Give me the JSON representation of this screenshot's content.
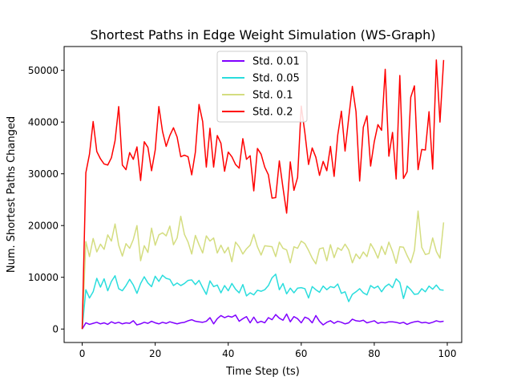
{
  "chart_data": {
    "type": "line",
    "title": "Shortest Paths in Edge Weight Simulation (WS-Graph)",
    "xlabel": "Time Step (ts)",
    "ylabel": "Num. Shortest Paths Changed",
    "xlim": [
      -4.95,
      103.95
    ],
    "ylim": [
      -2600,
      54600
    ],
    "xticks": [
      0,
      20,
      40,
      60,
      80,
      100
    ],
    "yticks": [
      0,
      10000,
      20000,
      30000,
      40000,
      50000
    ],
    "xtick_labels": [
      "0",
      "20",
      "40",
      "60",
      "80",
      "100"
    ],
    "ytick_labels": [
      "0",
      "10000",
      "20000",
      "30000",
      "40000",
      "50000"
    ],
    "grid": false,
    "legend_position": "top-center",
    "x_start": 0,
    "series": [
      {
        "name": "Std. 0.01",
        "color": "#8000ff",
        "values": [
          0,
          1200,
          900,
          1100,
          1300,
          1000,
          1200,
          900,
          1400,
          1100,
          1300,
          1000,
          1200,
          1100,
          1600,
          800,
          1000,
          1300,
          1100,
          1500,
          1200,
          1000,
          1300,
          1100,
          1400,
          1200,
          1000,
          1200,
          1300,
          1600,
          1800,
          1500,
          1400,
          1300,
          1500,
          2200,
          1000,
          2000,
          2600,
          2200,
          2500,
          2300,
          2700,
          1500,
          2000,
          2400,
          1200,
          2300,
          1200,
          1500,
          1200,
          2200,
          1800,
          2800,
          2100,
          1700,
          2900,
          1400,
          2400,
          2000,
          1200,
          2300,
          2000,
          1200,
          2600,
          1500,
          800,
          1300,
          1600,
          1100,
          1500,
          1300,
          1000,
          1200,
          1900,
          1600,
          1500,
          1700,
          1200,
          1400,
          1600,
          1100,
          1300,
          1200,
          1400,
          1400,
          1300,
          1100,
          1300,
          900,
          1200,
          1400,
          1500,
          1200,
          1300,
          1100,
          1300,
          1600,
          1400,
          1500
        ]
      },
      {
        "name": "Std. 0.05",
        "color": "#2adddd",
        "values": [
          0,
          7600,
          6000,
          7200,
          9800,
          8100,
          9700,
          7400,
          9200,
          10300,
          7800,
          7400,
          8400,
          9600,
          8500,
          6900,
          8800,
          10100,
          8900,
          8200,
          10200,
          9200,
          10400,
          9800,
          9600,
          8400,
          8900,
          8400,
          8800,
          9400,
          9500,
          8600,
          9400,
          8000,
          6700,
          9300,
          8200,
          8500,
          7000,
          8400,
          7400,
          8800,
          7700,
          7000,
          8600,
          6400,
          7000,
          6600,
          7500,
          7300,
          7600,
          8400,
          9900,
          10600,
          7600,
          8800,
          6800,
          7900,
          7000,
          7900,
          8000,
          7800,
          6000,
          8200,
          7600,
          7100,
          8300,
          7600,
          8200,
          8000,
          8700,
          6900,
          7200,
          5300,
          6700,
          7200,
          7800,
          7000,
          6600,
          8400,
          7900,
          8300,
          7200,
          8200,
          8700,
          8000,
          9700,
          9000,
          5900,
          8300,
          7600,
          6700,
          6800,
          7800,
          7200,
          8300,
          7700,
          8500,
          7600,
          7500
        ]
      },
      {
        "name": "Std. 0.1",
        "color": "#d4dd80",
        "values": [
          0,
          16900,
          14000,
          17500,
          14900,
          16400,
          15400,
          18200,
          17000,
          20300,
          16200,
          14100,
          16500,
          15600,
          17300,
          20000,
          13200,
          16100,
          14800,
          19500,
          16200,
          18200,
          18600,
          18000,
          19900,
          16300,
          17600,
          21800,
          18300,
          16800,
          14500,
          18100,
          16300,
          14700,
          18000,
          17000,
          17600,
          14700,
          16200,
          14700,
          15800,
          13000,
          16800,
          15900,
          14500,
          15500,
          16200,
          18300,
          15900,
          14300,
          16100,
          16000,
          15900,
          14000,
          16800,
          15600,
          15300,
          12800,
          15900,
          15600,
          17000,
          16500,
          15200,
          13700,
          12600,
          15500,
          15700,
          13200,
          16300,
          13800,
          15700,
          15200,
          16400,
          15300,
          12800,
          14500,
          13600,
          14900,
          14000,
          16500,
          15300,
          13700,
          16000,
          14400,
          16800,
          15000,
          12700,
          15900,
          15800,
          14200,
          12800,
          15200,
          22800,
          15800,
          14400,
          14600,
          17600,
          15000,
          13700,
          20600
        ]
      },
      {
        "name": "Std. 0.2",
        "color": "#ff0000",
        "values": [
          0,
          30200,
          33800,
          40100,
          34300,
          32900,
          31900,
          31700,
          33100,
          36400,
          43000,
          31700,
          30800,
          34100,
          32800,
          35200,
          28700,
          36200,
          35100,
          30600,
          34600,
          43000,
          38200,
          35300,
          37400,
          38900,
          37100,
          33300,
          33600,
          33300,
          29800,
          34200,
          43400,
          40100,
          31300,
          38800,
          31300,
          37400,
          35900,
          30500,
          34200,
          33300,
          31800,
          31100,
          36800,
          32800,
          33500,
          26700,
          34900,
          33800,
          31300,
          29800,
          25300,
          25400,
          32500,
          27300,
          22400,
          32300,
          26800,
          29300,
          43100,
          37900,
          31800,
          35000,
          33200,
          29700,
          32400,
          30600,
          35300,
          29500,
          37500,
          42100,
          34400,
          40800,
          46900,
          42000,
          28600,
          39000,
          41200,
          31500,
          36200,
          39500,
          38400,
          50200,
          33400,
          38000,
          29000,
          49000,
          29100,
          30400,
          44800,
          47000,
          30800,
          34700,
          34600,
          42000,
          30900,
          52000,
          40000,
          52000
        ]
      }
    ]
  }
}
